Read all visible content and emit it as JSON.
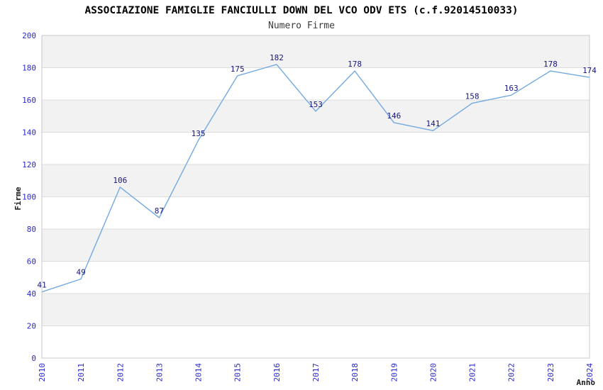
{
  "chart_data": {
    "type": "line",
    "title": "ASSOCIAZIONE FAMIGLIE FANCIULLI DOWN DEL VCO ODV ETS (c.f.92014510033)",
    "subtitle": "Numero Firme",
    "xlabel": "Anno",
    "ylabel": "Firme",
    "categories": [
      "2010",
      "2011",
      "2012",
      "2013",
      "2014",
      "2015",
      "2016",
      "2017",
      "2018",
      "2019",
      "2020",
      "2021",
      "2022",
      "2023",
      "2024"
    ],
    "series": [
      {
        "name": "Numero Firme",
        "values": [
          41,
          49,
          106,
          87,
          135,
          175,
          182,
          153,
          178,
          146,
          141,
          158,
          163,
          178,
          174
        ]
      }
    ],
    "ylim": [
      0,
      200
    ],
    "ytick_step": 20,
    "yticks": [
      0,
      20,
      40,
      60,
      80,
      100,
      120,
      140,
      160,
      180,
      200
    ],
    "grid": true,
    "legend": "none",
    "data_labels": true,
    "colors": {
      "line": "#74A9E0",
      "tick_label": "#2929CC",
      "data_label": "#16167D",
      "band": "#F2F2F2",
      "grid": "#DCDCDC",
      "border": "#C9C9C9",
      "title": "#000000",
      "subtitle": "#3C3C3C",
      "axis_title": "#1A1A1A",
      "background": "#FFFFFF"
    }
  }
}
